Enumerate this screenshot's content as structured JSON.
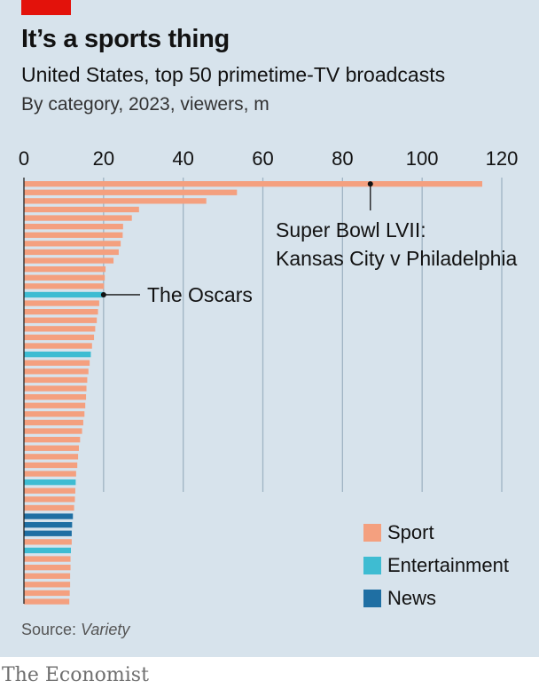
{
  "header": {
    "title": "It’s a sports thing",
    "subtitle": "United States, top 50 primetime-TV broadcasts",
    "note": "By category, 2023, viewers, m"
  },
  "footer": {
    "source_label": "Source: ",
    "source_name": "Variety",
    "brand": "The Economist"
  },
  "colors": {
    "Sport": "#f4a07f",
    "Entertainment": "#3ebcd2",
    "News": "#1f6fa3",
    "grid": "#9fb4c3",
    "accent": "#e3120b"
  },
  "chart_data": {
    "type": "bar",
    "orientation": "horizontal",
    "title": "It’s a sports thing",
    "subtitle": "United States, top 50 primetime-TV broadcasts",
    "xlabel": "By category, 2023, viewers, m",
    "xlim": [
      0,
      120
    ],
    "xticks": [
      0,
      20,
      40,
      60,
      80,
      100,
      120
    ],
    "grid": true,
    "legend_position": "bottom-right",
    "legend": [
      "Sport",
      "Entertainment",
      "News"
    ],
    "values": [
      115.1,
      53.5,
      45.8,
      28.9,
      27.1,
      24.9,
      24.8,
      24.3,
      23.8,
      22.5,
      20.5,
      20.3,
      20.1,
      19.9,
      18.9,
      18.6,
      18.3,
      17.9,
      17.6,
      17.1,
      16.8,
      16.5,
      16.2,
      15.9,
      15.7,
      15.6,
      15.4,
      15.2,
      14.9,
      14.6,
      14.1,
      13.8,
      13.6,
      13.4,
      13.1,
      13.0,
      12.9,
      12.8,
      12.6,
      12.3,
      12.1,
      12.0,
      12.0,
      11.8,
      11.7,
      11.7,
      11.6,
      11.6,
      11.5,
      11.4
    ],
    "categories": [
      "Sport",
      "Sport",
      "Sport",
      "Sport",
      "Sport",
      "Sport",
      "Sport",
      "Sport",
      "Sport",
      "Sport",
      "Sport",
      "Sport",
      "Sport",
      "Entertainment",
      "Sport",
      "Sport",
      "Sport",
      "Sport",
      "Sport",
      "Sport",
      "Entertainment",
      "Sport",
      "Sport",
      "Sport",
      "Sport",
      "Sport",
      "Sport",
      "Sport",
      "Sport",
      "Sport",
      "Sport",
      "Sport",
      "Sport",
      "Sport",
      "Sport",
      "Entertainment",
      "Sport",
      "Sport",
      "Sport",
      "News",
      "News",
      "News",
      "Sport",
      "Entertainment",
      "Sport",
      "Sport",
      "Sport",
      "Sport",
      "Sport",
      "Sport"
    ],
    "annotations": [
      {
        "text_lines": [
          "Super Bowl LVII:",
          "Kansas City v Philadelphia"
        ],
        "bar_index": 0,
        "point_value": 87
      },
      {
        "text_lines": [
          "The Oscars"
        ],
        "bar_index": 13,
        "point_value": 20
      }
    ]
  }
}
